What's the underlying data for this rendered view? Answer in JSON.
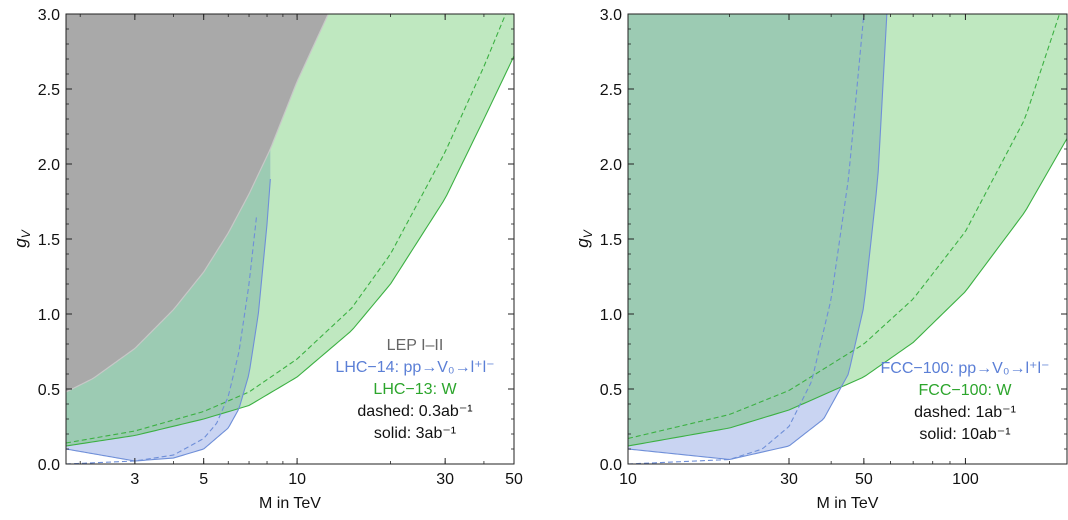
{
  "colors": {
    "lep_fill": "#a9a9a9",
    "lep_edge": "#c8c8c8",
    "green_fill": "#bfe8c0",
    "green_line": "#3cb043",
    "blue_fill": "#c9d4f2",
    "blue_line": "#6f8fd8",
    "overlap_fill": "#9ccbb3",
    "lep_text": "#666666",
    "blue_text": "#5b7fd6",
    "green_text": "#2ca52c",
    "black_text": "#111111"
  },
  "chart_data": [
    {
      "type": "area",
      "xscale": "log",
      "xlim": [
        1.8,
        50
      ],
      "ylim": [
        0,
        3.0
      ],
      "xlabel": "M in TeV",
      "ylabel": "g",
      "ylabel_sub": "V",
      "xticks": [
        3,
        5,
        10,
        30,
        50
      ],
      "xtick_labels": [
        "3",
        "5",
        "10",
        "30",
        "50"
      ],
      "yticks": [
        0,
        0.5,
        1.0,
        1.5,
        2.0,
        2.5,
        3.0
      ],
      "ytick_labels": [
        "0.0",
        "0.5",
        "1.0",
        "1.5",
        "2.0",
        "2.5",
        "3.0"
      ],
      "grid": false,
      "legend": {
        "position": "lower-right",
        "entries": [
          {
            "text": "LEP I–II",
            "color_key": "lep_text"
          },
          {
            "text": "LHC−14: pp→V₀→l⁺l⁻",
            "color_key": "blue_text"
          },
          {
            "text": "LHC−13: W",
            "color_key": "green_text"
          },
          {
            "text": "dashed: 0.3ab⁻¹",
            "color_key": "black_text"
          },
          {
            "text": "solid: 3ab⁻¹",
            "color_key": "black_text"
          }
        ]
      },
      "series": [
        {
          "name": "LEP I–II",
          "role": "lep_boundary",
          "style": "fill-above",
          "x": [
            1.8,
            2.2,
            3,
            4,
            5,
            6,
            7,
            8.2,
            10,
            12.6
          ],
          "y": [
            0.48,
            0.57,
            0.77,
            1.03,
            1.28,
            1.54,
            1.8,
            2.1,
            2.55,
            3.0
          ]
        },
        {
          "name": "LHC−13: W",
          "role": "green_solid",
          "style": "solid",
          "x": [
            1.8,
            3,
            5,
            7,
            10,
            15,
            20,
            30,
            40,
            50
          ],
          "y": [
            0.12,
            0.19,
            0.3,
            0.39,
            0.58,
            0.89,
            1.2,
            1.77,
            2.3,
            2.72
          ]
        },
        {
          "name": "LHC−13: W",
          "role": "green_dashed",
          "style": "dashed",
          "x": [
            1.8,
            3,
            5,
            7,
            10,
            15,
            20,
            30,
            40,
            47
          ],
          "y": [
            0.14,
            0.22,
            0.35,
            0.48,
            0.7,
            1.04,
            1.4,
            2.08,
            2.65,
            3.0
          ]
        },
        {
          "name": "LHC−14: pp→V₀→l⁺l⁻",
          "role": "blue_solid",
          "style": "solid",
          "x": [
            1.8,
            3,
            4,
            5,
            6,
            6.5,
            7,
            7.5,
            8,
            8.2
          ],
          "y": [
            0.1,
            0.02,
            0.04,
            0.1,
            0.24,
            0.37,
            0.6,
            1.0,
            1.6,
            1.9
          ]
        },
        {
          "name": "LHC−14: pp→V₀→l⁺l⁻",
          "role": "blue_dashed",
          "style": "dashed",
          "x": [
            1.8,
            3,
            4,
            5,
            5.5,
            6,
            6.5,
            7,
            7.4
          ],
          "y": [
            0.0,
            0.02,
            0.06,
            0.17,
            0.27,
            0.45,
            0.75,
            1.2,
            1.65
          ]
        }
      ]
    },
    {
      "type": "area",
      "xscale": "log",
      "xlim": [
        10,
        200
      ],
      "ylim": [
        0,
        3.0
      ],
      "xlabel": "M in TeV",
      "ylabel": "g",
      "ylabel_sub": "V",
      "xticks": [
        10,
        30,
        50,
        100
      ],
      "xtick_labels": [
        "10",
        "30",
        "50",
        "100"
      ],
      "yticks": [
        0,
        0.5,
        1.0,
        1.5,
        2.0,
        2.5,
        3.0
      ],
      "ytick_labels": [
        "0.0",
        "0.5",
        "1.0",
        "1.5",
        "2.0",
        "2.5",
        "3.0"
      ],
      "grid": false,
      "legend": {
        "position": "lower-right",
        "entries": [
          {
            "text": "FCC−100: pp→V₀→l⁺l⁻",
            "color_key": "blue_text"
          },
          {
            "text": "FCC−100: W",
            "color_key": "green_text"
          },
          {
            "text": "dashed: 1ab⁻¹",
            "color_key": "black_text"
          },
          {
            "text": "solid: 10ab⁻¹",
            "color_key": "black_text"
          }
        ]
      },
      "series": [
        {
          "name": "FCC−100: W",
          "role": "green_solid",
          "style": "solid",
          "x": [
            10,
            20,
            30,
            50,
            70,
            100,
            150,
            200
          ],
          "y": [
            0.12,
            0.24,
            0.36,
            0.58,
            0.81,
            1.15,
            1.68,
            2.17
          ]
        },
        {
          "name": "FCC−100: W",
          "role": "green_dashed",
          "style": "dashed",
          "x": [
            10,
            20,
            30,
            50,
            70,
            100,
            150,
            190
          ],
          "y": [
            0.17,
            0.33,
            0.49,
            0.8,
            1.1,
            1.55,
            2.3,
            3.0
          ]
        },
        {
          "name": "FCC−100: pp→V₀→l⁺l⁻",
          "role": "blue_solid",
          "style": "solid",
          "x": [
            10,
            20,
            30,
            38,
            45,
            50,
            55,
            58.5
          ],
          "y": [
            0.1,
            0.03,
            0.12,
            0.3,
            0.6,
            1.05,
            1.9,
            3.0
          ]
        },
        {
          "name": "FCC−100: pp→V₀→l⁺l⁻",
          "role": "blue_dashed",
          "style": "dashed",
          "x": [
            10,
            20,
            25,
            30,
            35,
            40,
            45,
            50
          ],
          "y": [
            0.0,
            0.03,
            0.1,
            0.25,
            0.55,
            1.1,
            1.9,
            3.0
          ]
        }
      ]
    }
  ]
}
